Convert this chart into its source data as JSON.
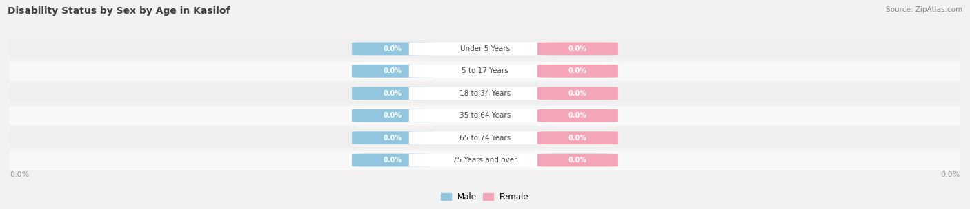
{
  "title": "Disability Status by Sex by Age in Kasilof",
  "source": "Source: ZipAtlas.com",
  "categories": [
    "Under 5 Years",
    "5 to 17 Years",
    "18 to 34 Years",
    "35 to 64 Years",
    "65 to 74 Years",
    "75 Years and over"
  ],
  "male_values": [
    0.0,
    0.0,
    0.0,
    0.0,
    0.0,
    0.0
  ],
  "female_values": [
    0.0,
    0.0,
    0.0,
    0.0,
    0.0,
    0.0
  ],
  "male_color": "#92C5DE",
  "female_color": "#F4A6B8",
  "row_bg_light": "#EFEFEF",
  "row_bg_white": "#F8F8F8",
  "fig_bg": "#F2F2F2",
  "title_color": "#404040",
  "label_color": "#333333",
  "source_color": "#888888",
  "axis_tick_color": "#999999",
  "male_label": "Male",
  "female_label": "Female",
  "value_text_color": "#FFFFFF",
  "cat_text_color": "#444444",
  "figsize": [
    14.06,
    3.04
  ],
  "dpi": 100
}
